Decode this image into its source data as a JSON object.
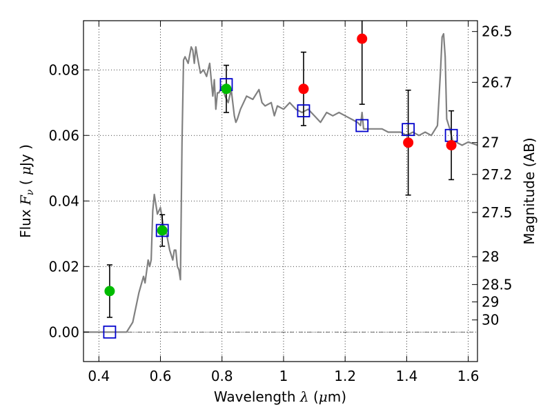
{
  "chart_data": {
    "type": "scatter",
    "xlabel": "Wavelength  λ (μm)",
    "ylabel_left": "Flux  Fν ( μJy )",
    "ylabel_right": "Magnitude (AB)",
    "xlim": [
      0.35,
      1.63
    ],
    "ylim": [
      -0.009,
      0.095
    ],
    "x_ticks": [
      0.4,
      0.6,
      0.8,
      1.0,
      1.2,
      1.4,
      1.6
    ],
    "x_tick_labels": [
      "0.4",
      "0.6",
      "0.8",
      "1",
      "1.2",
      "1.4",
      "1.6"
    ],
    "y_ticks": [
      0.0,
      0.02,
      0.04,
      0.06,
      0.08
    ],
    "y_tick_labels": [
      "0.00",
      "0.02",
      "0.04",
      "0.06",
      "0.08"
    ],
    "magnitude_ticks": [
      {
        "label": "26.5",
        "flux": 0.0917
      },
      {
        "label": "26.7",
        "flux": 0.0762
      },
      {
        "label": "27",
        "flux": 0.0578
      },
      {
        "label": "27.2",
        "flux": 0.0481
      },
      {
        "label": "27.5",
        "flux": 0.0365
      },
      {
        "label": "28",
        "flux": 0.023
      },
      {
        "label": "28.5",
        "flux": 0.0145
      },
      {
        "label": "29",
        "flux": 0.0092
      },
      {
        "label": "30",
        "flux": 0.0037
      }
    ],
    "grid": true,
    "series": [
      {
        "name": "green-detections",
        "color": "#00bb00",
        "marker": "circle",
        "points": [
          {
            "x": 0.435,
            "y": 0.0125,
            "err": 0.008
          },
          {
            "x": 0.606,
            "y": 0.031,
            "err": 0.0048
          },
          {
            "x": 0.814,
            "y": 0.0742,
            "err": 0.0072
          }
        ]
      },
      {
        "name": "red-detections",
        "color": "#ff0000",
        "marker": "circle",
        "points": [
          {
            "x": 1.065,
            "y": 0.0742,
            "err": 0.0112
          },
          {
            "x": 1.255,
            "y": 0.0895,
            "err": 0.02
          },
          {
            "x": 1.405,
            "y": 0.0578,
            "err": 0.016
          },
          {
            "x": 1.545,
            "y": 0.057,
            "err": 0.0105
          }
        ]
      },
      {
        "name": "model-photometry",
        "color": "#0000cc",
        "marker": "open-square",
        "points": [
          {
            "x": 0.435,
            "y": 0.0
          },
          {
            "x": 0.606,
            "y": 0.031
          },
          {
            "x": 0.814,
            "y": 0.0755
          },
          {
            "x": 1.065,
            "y": 0.0675
          },
          {
            "x": 1.255,
            "y": 0.063
          },
          {
            "x": 1.405,
            "y": 0.0618
          },
          {
            "x": 1.545,
            "y": 0.06
          }
        ]
      }
    ],
    "model_spectrum": {
      "name": "sed-model-curve",
      "color": "#808080",
      "x": [
        0.35,
        0.49,
        0.51,
        0.53,
        0.545,
        0.55,
        0.56,
        0.565,
        0.57,
        0.575,
        0.58,
        0.59,
        0.6,
        0.61,
        0.62,
        0.63,
        0.64,
        0.645,
        0.65,
        0.655,
        0.66,
        0.665,
        0.67,
        0.675,
        0.68,
        0.69,
        0.7,
        0.705,
        0.71,
        0.715,
        0.72,
        0.73,
        0.74,
        0.75,
        0.76,
        0.77,
        0.775,
        0.78,
        0.785,
        0.79,
        0.8,
        0.81,
        0.82,
        0.83,
        0.84,
        0.845,
        0.85,
        0.86,
        0.88,
        0.9,
        0.92,
        0.93,
        0.94,
        0.96,
        0.97,
        0.98,
        1.0,
        1.02,
        1.04,
        1.06,
        1.08,
        1.1,
        1.12,
        1.14,
        1.16,
        1.18,
        1.2,
        1.22,
        1.24,
        1.25,
        1.255,
        1.26,
        1.27,
        1.3,
        1.32,
        1.34,
        1.36,
        1.38,
        1.4,
        1.42,
        1.44,
        1.46,
        1.48,
        1.5,
        1.51,
        1.515,
        1.52,
        1.525,
        1.53,
        1.54,
        1.55,
        1.56,
        1.58,
        1.6,
        1.63
      ],
      "y": [
        0.0,
        0.0,
        0.003,
        0.012,
        0.017,
        0.015,
        0.022,
        0.02,
        0.022,
        0.037,
        0.042,
        0.036,
        0.038,
        0.032,
        0.03,
        0.025,
        0.022,
        0.025,
        0.025,
        0.02,
        0.019,
        0.016,
        0.058,
        0.083,
        0.084,
        0.082,
        0.087,
        0.086,
        0.082,
        0.087,
        0.084,
        0.079,
        0.08,
        0.078,
        0.082,
        0.072,
        0.077,
        0.068,
        0.073,
        0.073,
        0.075,
        0.072,
        0.07,
        0.074,
        0.066,
        0.064,
        0.065,
        0.068,
        0.072,
        0.071,
        0.074,
        0.07,
        0.069,
        0.07,
        0.066,
        0.069,
        0.068,
        0.07,
        0.068,
        0.067,
        0.068,
        0.066,
        0.064,
        0.067,
        0.066,
        0.067,
        0.066,
        0.065,
        0.064,
        0.063,
        0.067,
        0.062,
        0.062,
        0.062,
        0.062,
        0.061,
        0.061,
        0.061,
        0.06,
        0.061,
        0.06,
        0.061,
        0.06,
        0.063,
        0.08,
        0.09,
        0.091,
        0.084,
        0.065,
        0.062,
        0.058,
        0.058,
        0.057,
        0.058,
        0.057
      ]
    },
    "zero_line": {
      "y": 0.0,
      "style": "dashdot"
    }
  }
}
